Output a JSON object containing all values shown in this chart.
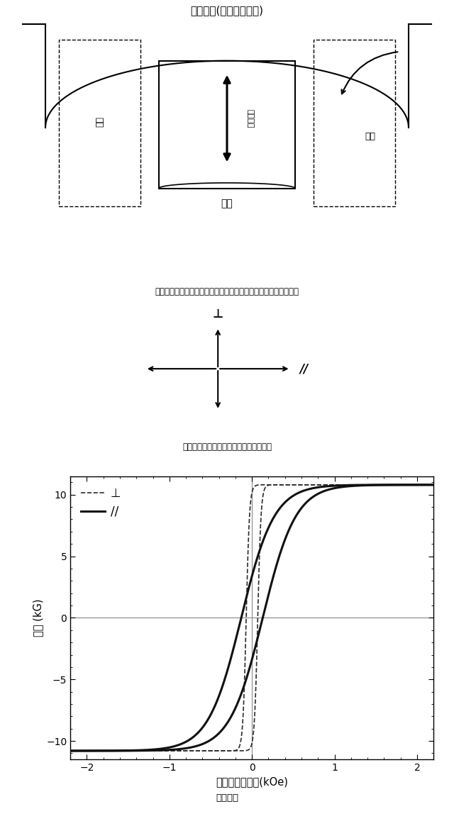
{
  "fig_width": 6.4,
  "fig_height": 11.58,
  "diagram_title": "アノード(基板ホルダー)",
  "diagram_caption": "アノードにおける磁石の配置（基板回転と平行方向に磁界印加）",
  "cross_caption": "下の磁化曲線の測定方向（上図と対応）",
  "plot_xlabel": "印加磁界の強さ(kOe)",
  "plot_ylabel": "磁化 (kG)",
  "plot_caption": "磁化曲線",
  "legend_perp": "⊥",
  "legend_para": "//",
  "left_label": "石槽",
  "center_label_inner": "着磁磁場",
  "center_label_bottom": "基板",
  "right_label": "回転",
  "xlim": [
    -2.2,
    2.2
  ],
  "ylim": [
    -11.5,
    11.5
  ],
  "xticks": [
    -2,
    -1,
    0,
    1,
    2
  ],
  "yticks": [
    -10,
    -5,
    0,
    5,
    10
  ],
  "plot_bg": "#ffffff",
  "line_color_perp": "#333333",
  "line_color_para": "#111111"
}
